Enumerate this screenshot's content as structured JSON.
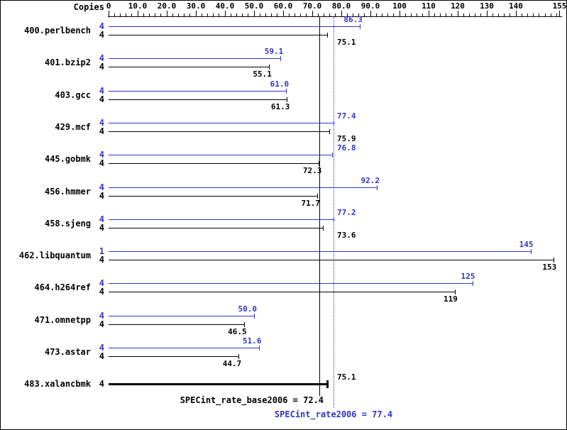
{
  "copies_header": "Copies",
  "chart_data": {
    "type": "bar",
    "orientation": "horizontal",
    "xlim": [
      0,
      155
    ],
    "minor_tick_step": 2,
    "x_ticks": [
      {
        "value": 0,
        "label": "0"
      },
      {
        "value": 10,
        "label": "10.0"
      },
      {
        "value": 20,
        "label": "20.0"
      },
      {
        "value": 30,
        "label": "30.0"
      },
      {
        "value": 40,
        "label": "40.0"
      },
      {
        "value": 50,
        "label": "50.0"
      },
      {
        "value": 60,
        "label": "60.0"
      },
      {
        "value": 70,
        "label": "70.0"
      },
      {
        "value": 80,
        "label": "80.0"
      },
      {
        "value": 90,
        "label": "90.0"
      },
      {
        "value": 100,
        "label": "100"
      },
      {
        "value": 110,
        "label": "110"
      },
      {
        "value": 120,
        "label": "120"
      },
      {
        "value": 130,
        "label": "130"
      },
      {
        "value": 140,
        "label": "140"
      },
      {
        "value": 155,
        "label": "155"
      }
    ],
    "colors": {
      "peak": "#3333cc",
      "base": "#000000"
    },
    "benchmarks": [
      {
        "name": "400.perlbench",
        "peak": {
          "copies": "4",
          "value": 86.3,
          "label": "86.3"
        },
        "base": {
          "copies": "4",
          "value": 75.1,
          "label": "75.1"
        }
      },
      {
        "name": "401.bzip2",
        "peak": {
          "copies": "4",
          "value": 59.1,
          "label": "59.1"
        },
        "base": {
          "copies": "4",
          "value": 55.1,
          "label": "55.1"
        }
      },
      {
        "name": "403.gcc",
        "peak": {
          "copies": "4",
          "value": 61.0,
          "label": "61.0"
        },
        "base": {
          "copies": "4",
          "value": 61.3,
          "label": "61.3"
        }
      },
      {
        "name": "429.mcf",
        "peak": {
          "copies": "4",
          "value": 77.4,
          "label": "77.4"
        },
        "base": {
          "copies": "4",
          "value": 75.9,
          "label": "75.9"
        }
      },
      {
        "name": "445.gobmk",
        "peak": {
          "copies": "4",
          "value": 76.8,
          "label": "76.8"
        },
        "base": {
          "copies": "4",
          "value": 72.3,
          "label": "72.3"
        }
      },
      {
        "name": "456.hmmer",
        "peak": {
          "copies": "4",
          "value": 92.2,
          "label": "92.2"
        },
        "base": {
          "copies": "4",
          "value": 71.7,
          "label": "71.7"
        }
      },
      {
        "name": "458.sjeng",
        "peak": {
          "copies": "4",
          "value": 77.2,
          "label": "77.2"
        },
        "base": {
          "copies": "4",
          "value": 73.6,
          "label": "73.6"
        }
      },
      {
        "name": "462.libquantum",
        "peak": {
          "copies": "1",
          "value": 145,
          "label": "145"
        },
        "base": {
          "copies": "4",
          "value": 153,
          "label": "153"
        }
      },
      {
        "name": "464.h264ref",
        "peak": {
          "copies": "4",
          "value": 125,
          "label": "125"
        },
        "base": {
          "copies": "4",
          "value": 119,
          "label": "119"
        }
      },
      {
        "name": "471.omnetpp",
        "peak": {
          "copies": "4",
          "value": 50.0,
          "label": "50.0"
        },
        "base": {
          "copies": "4",
          "value": 46.5,
          "label": "46.5"
        }
      },
      {
        "name": "473.astar",
        "peak": {
          "copies": "4",
          "value": 51.6,
          "label": "51.6"
        },
        "base": {
          "copies": "4",
          "value": 44.7,
          "label": "44.7"
        }
      },
      {
        "name": "483.xalancbmk",
        "base": {
          "copies": "4",
          "value": 75.1,
          "label": "75.1"
        },
        "bold": true
      }
    ],
    "summary": {
      "base": {
        "text": "SPECint_rate_base2006 = 72.4",
        "value": 72.4
      },
      "peak": {
        "text": "SPECint_rate2006 = 77.4",
        "value": 77.4
      }
    }
  }
}
